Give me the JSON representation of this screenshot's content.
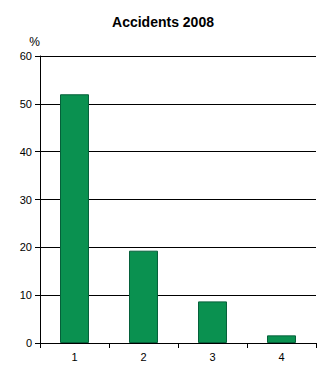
{
  "chart_data": {
    "type": "bar",
    "title": "Accidents 2008",
    "y_label": "%",
    "categories": [
      "1",
      "2",
      "3",
      "4"
    ],
    "values": [
      52,
      19.3,
      8.7,
      1.6
    ],
    "color": "#0a9150",
    "ylim": [
      0,
      60
    ],
    "yticks": [
      0,
      10,
      20,
      30,
      40,
      50,
      60
    ],
    "grid": true
  }
}
